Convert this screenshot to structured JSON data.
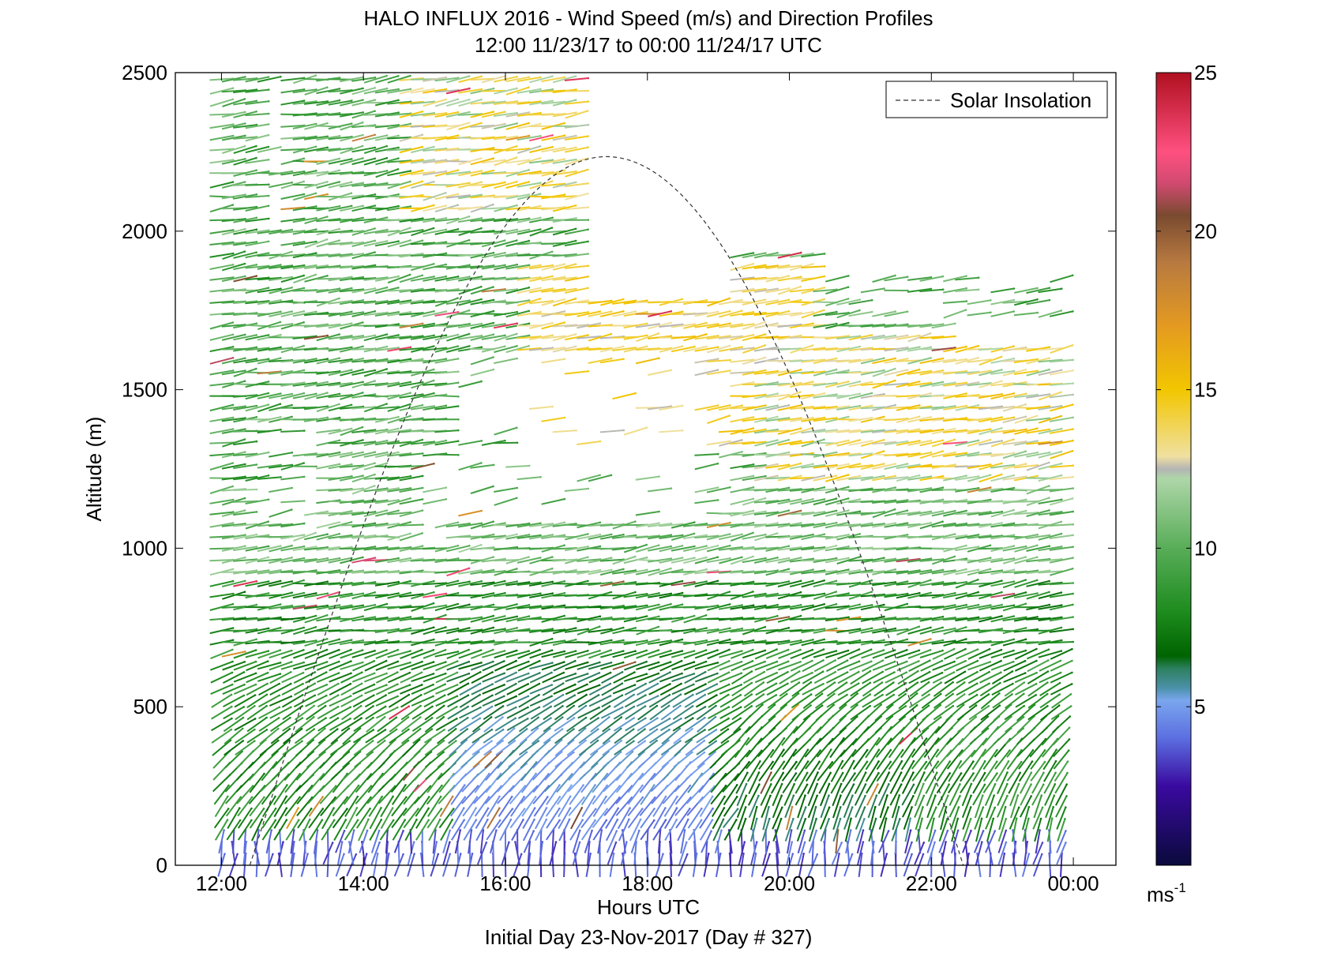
{
  "chart_data": {
    "type": "scatter",
    "title": "HALO INFLUX 2016 - Wind Speed (m/s) and Direction Profiles",
    "subtitle": "12:00 11/23/17 to 00:00 11/24/17  UTC",
    "xlabel": "Hours UTC",
    "xlabel_note": "Initial Day 23-Nov-2017 (Day # 327)",
    "ylabel": "Altitude (m)",
    "xlim": [
      11.35,
      24.6
    ],
    "ylim": [
      0,
      2500
    ],
    "x_ticks": [
      {
        "value": 12,
        "label": "12:00"
      },
      {
        "value": 14,
        "label": "14:00"
      },
      {
        "value": 16,
        "label": "16:00"
      },
      {
        "value": 18,
        "label": "18:00"
      },
      {
        "value": 20,
        "label": "20:00"
      },
      {
        "value": 22,
        "label": "22:00"
      },
      {
        "value": 24,
        "label": "00:00"
      }
    ],
    "y_ticks": [
      {
        "value": 0,
        "label": "0"
      },
      {
        "value": 500,
        "label": "500"
      },
      {
        "value": 1000,
        "label": "1000"
      },
      {
        "value": 1500,
        "label": "1500"
      },
      {
        "value": 2000,
        "label": "2000"
      },
      {
        "value": 2500,
        "label": "2500"
      }
    ],
    "colorbar": {
      "range": [
        0,
        25
      ],
      "unit_base": "ms",
      "unit_exp": "-1",
      "ticks": [
        {
          "value": 5,
          "label": "5"
        },
        {
          "value": 10,
          "label": "10"
        },
        {
          "value": 15,
          "label": "15"
        },
        {
          "value": 20,
          "label": "20"
        },
        {
          "value": 25,
          "label": "25"
        }
      ],
      "stops": [
        {
          "v": 0,
          "c": "#0a0a3c"
        },
        {
          "v": 2.5,
          "c": "#3a0aa0"
        },
        {
          "v": 4,
          "c": "#5b6ee0"
        },
        {
          "v": 5.2,
          "c": "#7aa6ee"
        },
        {
          "v": 5.6,
          "c": "#4a90a8"
        },
        {
          "v": 6.2,
          "c": "#2d8060"
        },
        {
          "v": 6.6,
          "c": "#006400"
        },
        {
          "v": 8,
          "c": "#1e8c1e"
        },
        {
          "v": 10,
          "c": "#58ad58"
        },
        {
          "v": 12.2,
          "c": "#aed6a8"
        },
        {
          "v": 12.5,
          "c": "#b4b4b4"
        },
        {
          "v": 12.9,
          "c": "#f0e0a0"
        },
        {
          "v": 15,
          "c": "#f2c600"
        },
        {
          "v": 17,
          "c": "#e49a20"
        },
        {
          "v": 19,
          "c": "#b87a40"
        },
        {
          "v": 20.5,
          "c": "#7a4a30"
        },
        {
          "v": 21.5,
          "c": "#d04a70"
        },
        {
          "v": 22.5,
          "c": "#ff5080"
        },
        {
          "v": 25,
          "c": "#b01020"
        }
      ]
    },
    "solar_insolation": {
      "legend": "Solar Insolation",
      "legend_position": "top-right",
      "start_hour": 12.4,
      "end_hour": 22.45,
      "peak_hour": 17.42,
      "peak_altitude": 2235
    },
    "wind_field": {
      "times": [
        12,
        12.17,
        12.33,
        12.5,
        12.67,
        12.83,
        13,
        13.17,
        13.33,
        13.5,
        13.67,
        13.83,
        14,
        14.17,
        14.33,
        14.5,
        14.67,
        14.83,
        15,
        15.17,
        15.33,
        15.5,
        15.67,
        15.83,
        16,
        16.17,
        16.33,
        16.5,
        16.67,
        16.83,
        17,
        17.17,
        17.33,
        17.5,
        17.67,
        17.83,
        18,
        18.17,
        18.33,
        18.5,
        18.67,
        18.83,
        19,
        19.17,
        19.33,
        19.5,
        19.67,
        19.83,
        20,
        20.17,
        20.33,
        20.5,
        20.67,
        20.83,
        21,
        21.17,
        21.33,
        21.5,
        21.67,
        21.83,
        22,
        22.17,
        22.33,
        22.5,
        22.67,
        22.83,
        23,
        23.17,
        23.33,
        23.5,
        23.67,
        23.83
      ],
      "altitude_step": 37,
      "max_altitude": 2500,
      "note": "Wind barbs: colored by speed, oriented by direction, dense field 0-2500 m"
    }
  }
}
